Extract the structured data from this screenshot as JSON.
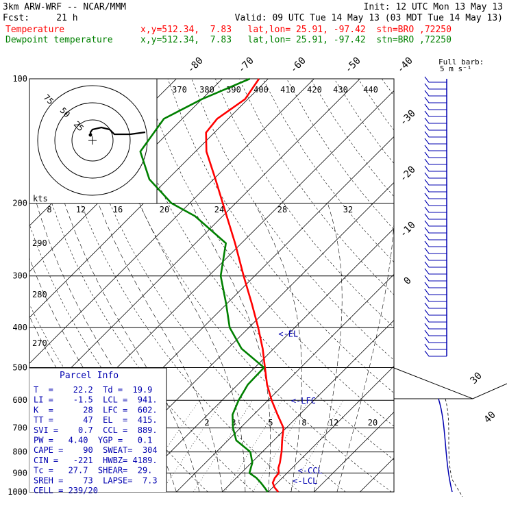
{
  "header": {
    "model": "3km ARW-WRF -- NCAR/MMM",
    "init": "Init: 12 UTC Mon 13 May 13",
    "fcst": "Fcst:     21 h",
    "valid": "Valid: 09 UTC Tue 14 May 13 (03 MDT Tue 14 May 13)",
    "temp_label": "Temperature",
    "temp_info": "x,y=512.34,  7.83   lat,lon= 25.91, -97.42  stn=BRO ,72250",
    "dew_label": "Dewpoint temperature",
    "dew_info": "x,y=512.34,  7.83   lat,lon= 25.91, -97.42  stn=BRO ,72250",
    "barb_label_1": "Full barb:",
    "barb_label_2": "5 m s⁻¹"
  },
  "parcel_info": {
    "title": "Parcel Info",
    "rows": [
      "T  =    22.2  Td =  19.9",
      "LI =    -1.5  LCL =  941.",
      "K  =      28  LFC =  602.",
      "TT =      47  EL  =  415.",
      "SVI =    0.7  CCL =  889.",
      "PW =   4.40  YGP =   0.1",
      "CAPE =    90  SWEAT=  304",
      "CIN =   -221  HWBZ= 4189.",
      "Tc =   27.7  SHEAR=  29.",
      "SREH =    73  LAPSE=  7.3",
      "CELL = 239/20"
    ]
  },
  "hodograph": {
    "units_label": "kts",
    "ring_labels": [
      "75",
      "50",
      "25"
    ]
  },
  "chart_data": {
    "type": "line",
    "title": "",
    "xlabel": "",
    "ylabel": "",
    "ylog": true,
    "ylim": [
      1000,
      100
    ],
    "xlim_at_1000mb": [
      -32,
      47
    ],
    "pressure_labels": [
      "100",
      "200",
      "300",
      "400",
      "500",
      "600",
      "700",
      "800",
      "900",
      "1000"
    ],
    "isotherm_labels": [
      "-80",
      "-70",
      "-60",
      "-50",
      "-40",
      "-30",
      "-20",
      "-10",
      "0"
    ],
    "theta_labels_top": [
      "370",
      "380",
      "390",
      "400",
      "410",
      "420",
      "430",
      "440"
    ],
    "theta_labels_left": [
      "290",
      "280",
      "270"
    ],
    "mixing_ratio_labels_low": [
      "2",
      "3",
      "5",
      "8",
      "12",
      "20"
    ],
    "mixing_ratio_labels_mid": [
      "8",
      "12",
      "16",
      "20",
      "24",
      "28",
      "32"
    ],
    "speed_scale_labels": [
      "30",
      "40"
    ],
    "level_markers": [
      {
        "label": "<-EL",
        "p": 415
      },
      {
        "label": "<-LFC",
        "p": 602
      },
      {
        "label": "<-CCL",
        "p": 889
      },
      {
        "label": "<-LCL",
        "p": 941
      }
    ],
    "series": [
      {
        "name": "Temperature",
        "color": "#ff0000",
        "points": [
          [
            1000,
            22.2
          ],
          [
            975,
            20.4
          ],
          [
            950,
            19.0
          ],
          [
            925,
            18.4
          ],
          [
            900,
            18.2
          ],
          [
            875,
            17.0
          ],
          [
            850,
            16.2
          ],
          [
            800,
            14.2
          ],
          [
            750,
            11.8
          ],
          [
            700,
            9.4
          ],
          [
            650,
            5.2
          ],
          [
            600,
            0.8
          ],
          [
            550,
            -3.6
          ],
          [
            500,
            -7.8
          ],
          [
            450,
            -12.4
          ],
          [
            400,
            -18.0
          ],
          [
            350,
            -24.6
          ],
          [
            300,
            -32.4
          ],
          [
            250,
            -41.4
          ],
          [
            200,
            -52.8
          ],
          [
            175,
            -59.6
          ],
          [
            150,
            -67.6
          ],
          [
            135,
            -71.8
          ],
          [
            125,
            -72.4
          ],
          [
            112,
            -70.6
          ],
          [
            100,
            -72.0
          ]
        ]
      },
      {
        "name": "Dewpoint temperature",
        "color": "#008000",
        "points": [
          [
            1000,
            19.9
          ],
          [
            975,
            18.2
          ],
          [
            950,
            16.4
          ],
          [
            925,
            14.4
          ],
          [
            900,
            11.8
          ],
          [
            875,
            11.0
          ],
          [
            850,
            10.2
          ],
          [
            800,
            7.4
          ],
          [
            750,
            1.8
          ],
          [
            700,
            -1.6
          ],
          [
            650,
            -4.6
          ],
          [
            600,
            -6.4
          ],
          [
            550,
            -7.8
          ],
          [
            500,
            -8.0
          ],
          [
            450,
            -17.0
          ],
          [
            400,
            -24.2
          ],
          [
            350,
            -30.2
          ],
          [
            300,
            -37.4
          ],
          [
            250,
            -43.4
          ],
          [
            215,
            -56.0
          ],
          [
            200,
            -64.0
          ],
          [
            175,
            -74.0
          ],
          [
            150,
            -82.0
          ],
          [
            125,
            -84.0
          ],
          [
            112,
            -80.0
          ],
          [
            100,
            -74.0
          ]
        ]
      }
    ]
  },
  "colors": {
    "temperature": "#ff0000",
    "dewpoint": "#008000",
    "barbs": "#0000b0",
    "grid": "#000000",
    "parcel_text": "#0000b0"
  }
}
